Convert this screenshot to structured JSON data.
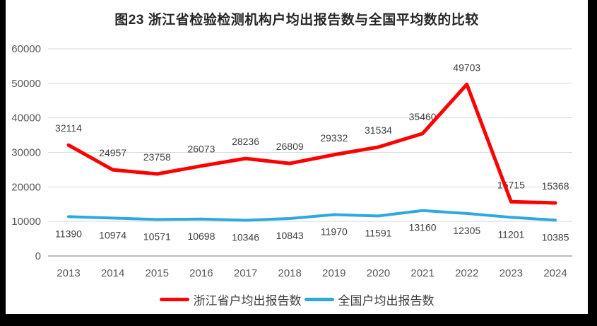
{
  "frame": {
    "border_color": "#000000",
    "background": "#ffffff"
  },
  "chart_data": {
    "type": "line",
    "title": "图23  浙江省检验检测机构户均出报告数与全国平均数的比较",
    "categories": [
      "2013",
      "2014",
      "2015",
      "2016",
      "2017",
      "2018",
      "2019",
      "2020",
      "2021",
      "2022",
      "2023",
      "2024"
    ],
    "series": [
      {
        "name": "浙江省户均出报告数",
        "color": "#fe0000",
        "values": [
          32114,
          24957,
          23758,
          26073,
          28236,
          26809,
          29332,
          31534,
          35460,
          49703,
          15715,
          15368
        ]
      },
      {
        "name": "全国户均出报告数",
        "color": "#2ba9e0",
        "values": [
          11390,
          10974,
          10571,
          10698,
          10346,
          10843,
          11970,
          11591,
          13160,
          12305,
          11201,
          10385
        ]
      }
    ],
    "xlabel": "",
    "ylabel": "",
    "ylim": [
      0,
      60000
    ],
    "ytick_step": 10000,
    "grid": true,
    "data_labels": true,
    "legend_position": "bottom",
    "colors": {
      "grid_line": "#d9d9d9",
      "axis_line": "#a6a6a6",
      "tick_label": "#595959",
      "data_label": "#404040",
      "title": "#262626"
    }
  }
}
